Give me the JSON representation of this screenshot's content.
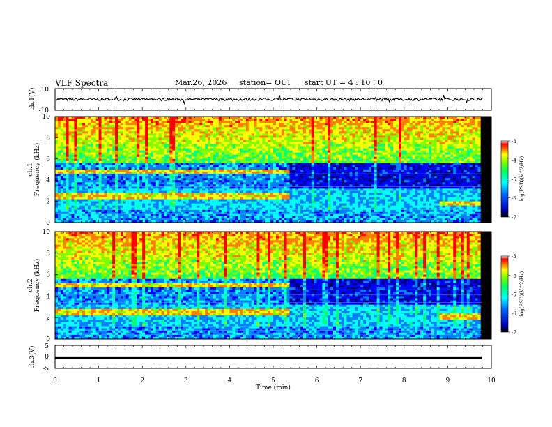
{
  "header": {
    "title": "VLF Spectra",
    "date": "Mar.26, 2026",
    "station": "station= OUI",
    "start": "start  UT =   4 : 10 : 0"
  },
  "chart_data": [
    {
      "type": "line",
      "name": "ch1-waveform",
      "ylabel": "ch.1(V)",
      "ylim": [
        -10,
        10
      ],
      "yticks": [
        10,
        -10
      ],
      "xlim": [
        0,
        10
      ],
      "baseline_v": 0
    },
    {
      "type": "heatmap",
      "name": "ch1-spectrogram",
      "ylabel_top": "ch.1",
      "ylabel": "Frequency (kHz)",
      "ylim": [
        0,
        10
      ],
      "yticks": [
        0,
        2,
        4,
        6,
        8,
        10
      ],
      "xlim": [
        0,
        10
      ],
      "colorbar": {
        "label": "log(PSD)(V^2/Hz)",
        "range": [
          -7,
          -3
        ],
        "ticks": [
          "-3",
          "-4",
          "-5",
          "-6",
          "-7"
        ]
      },
      "bands_khz": [
        {
          "f": 4.8,
          "until_min": 5.4
        },
        {
          "f": 2.5,
          "until_min": 5.4
        },
        {
          "f": 1.8,
          "from_min": 8.8
        }
      ]
    },
    {
      "type": "heatmap",
      "name": "ch2-spectrogram",
      "ylabel_top": "ch.2",
      "ylabel": "Frequency (kHz)",
      "ylim": [
        0,
        10
      ],
      "yticks": [
        0,
        2,
        4,
        6,
        8,
        10
      ],
      "xlim": [
        0,
        10
      ],
      "colorbar": {
        "label": "log(PSD)(V^2/Hz)",
        "range": [
          -7,
          -3
        ],
        "ticks": [
          "-3",
          "-4",
          "-5",
          "-6",
          "-7"
        ]
      },
      "bands_khz": [
        {
          "f": 5.0,
          "until_min": 5.4
        },
        {
          "f": 2.5,
          "until_min": 5.4
        },
        {
          "f": 2.1,
          "from_min": 8.8
        }
      ]
    },
    {
      "type": "line",
      "name": "ch3-waveform",
      "ylabel": "ch.3(V)",
      "ylim": [
        -5,
        5
      ],
      "yticks": [
        5,
        0,
        -5
      ],
      "xlim": [
        0,
        10
      ],
      "level_v": -0.4
    }
  ],
  "x_axis": {
    "label": "Time (min)",
    "ticks": [
      "0",
      "1",
      "2",
      "3",
      "4",
      "5",
      "6",
      "7",
      "8",
      "9",
      "10"
    ]
  },
  "colormap": [
    "#000080",
    "#0000ff",
    "#0080ff",
    "#00ffff",
    "#00ff80",
    "#80ff00",
    "#ffff00",
    "#ff8000",
    "#ff0000",
    "#ffffff"
  ]
}
